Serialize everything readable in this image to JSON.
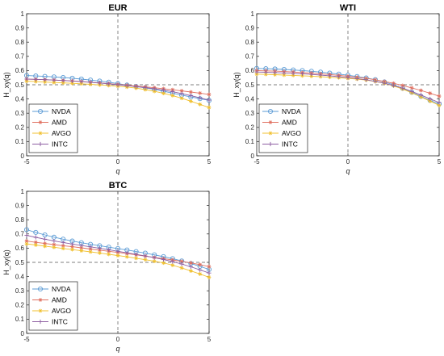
{
  "chart_data": [
    {
      "type": "line",
      "title": "EUR",
      "xlabel": "q",
      "ylabel": "H_xy(q)",
      "xlim": [
        -5,
        5
      ],
      "ylim": [
        0,
        1
      ],
      "xticks": [
        "-5",
        "0",
        "5"
      ],
      "yticks": [
        "0",
        "0.1",
        "0.2",
        "0.3",
        "0.4",
        "0.5",
        "0.6",
        "0.7",
        "0.8",
        "0.9",
        "1"
      ],
      "grid": false,
      "legend_position": "bottom-left",
      "reference_lines": {
        "x": 0,
        "y": 0.5
      },
      "x": [
        -5,
        -4.5,
        -4,
        -3.5,
        -3,
        -2.5,
        -2,
        -1.5,
        -1,
        -0.5,
        0,
        0.5,
        1,
        1.5,
        2,
        2.5,
        3,
        3.5,
        4,
        4.5,
        5
      ],
      "series": [
        {
          "name": "NVDA",
          "values": [
            0.565,
            0.562,
            0.559,
            0.555,
            0.551,
            0.546,
            0.54,
            0.533,
            0.526,
            0.518,
            0.508,
            0.498,
            0.488,
            0.478,
            0.468,
            0.455,
            0.441,
            0.427,
            0.414,
            0.402,
            0.39
          ]
        },
        {
          "name": "AMD",
          "values": [
            0.54,
            0.538,
            0.536,
            0.533,
            0.53,
            0.527,
            0.523,
            0.518,
            0.513,
            0.508,
            0.502,
            0.497,
            0.491,
            0.485,
            0.479,
            0.472,
            0.465,
            0.457,
            0.449,
            0.441,
            0.432
          ]
        },
        {
          "name": "AVGO",
          "values": [
            0.525,
            0.522,
            0.519,
            0.516,
            0.513,
            0.51,
            0.507,
            0.503,
            0.499,
            0.495,
            0.49,
            0.484,
            0.476,
            0.466,
            0.454,
            0.44,
            0.424,
            0.405,
            0.384,
            0.362,
            0.34
          ]
        },
        {
          "name": "INTC",
          "values": [
            0.54,
            0.538,
            0.536,
            0.533,
            0.53,
            0.526,
            0.522,
            0.517,
            0.512,
            0.507,
            0.5,
            0.494,
            0.487,
            0.48,
            0.472,
            0.462,
            0.451,
            0.438,
            0.424,
            0.408,
            0.392
          ]
        }
      ]
    },
    {
      "type": "line",
      "title": "WTI",
      "xlabel": "q",
      "ylabel": "H_xy(q)",
      "xlim": [
        -5,
        5
      ],
      "ylim": [
        0,
        1
      ],
      "xticks": [
        "-5",
        "0",
        "5"
      ],
      "yticks": [
        "0",
        "0.1",
        "0.2",
        "0.3",
        "0.4",
        "0.5",
        "0.6",
        "0.7",
        "0.8",
        "0.9",
        "1"
      ],
      "grid": false,
      "legend_position": "bottom-left",
      "reference_lines": {
        "x": 0,
        "y": 0.5
      },
      "x": [
        -5,
        -4.5,
        -4,
        -3.5,
        -3,
        -2.5,
        -2,
        -1.5,
        -1,
        -0.5,
        0,
        0.5,
        1,
        1.5,
        2,
        2.5,
        3,
        3.5,
        4,
        4.5,
        5
      ],
      "series": [
        {
          "name": "NVDA",
          "values": [
            0.615,
            0.613,
            0.611,
            0.608,
            0.604,
            0.6,
            0.595,
            0.589,
            0.582,
            0.575,
            0.567,
            0.558,
            0.548,
            0.536,
            0.52,
            0.5,
            0.475,
            0.447,
            0.418,
            0.39,
            0.365
          ]
        },
        {
          "name": "AMD",
          "values": [
            0.6,
            0.598,
            0.596,
            0.593,
            0.59,
            0.586,
            0.582,
            0.577,
            0.572,
            0.566,
            0.56,
            0.553,
            0.545,
            0.535,
            0.523,
            0.51,
            0.495,
            0.478,
            0.46,
            0.44,
            0.42
          ]
        },
        {
          "name": "AVGO",
          "values": [
            0.575,
            0.573,
            0.571,
            0.568,
            0.566,
            0.563,
            0.56,
            0.557,
            0.553,
            0.549,
            0.545,
            0.54,
            0.533,
            0.523,
            0.51,
            0.492,
            0.47,
            0.443,
            0.414,
            0.385,
            0.355
          ]
        },
        {
          "name": "INTC",
          "values": [
            0.59,
            0.588,
            0.586,
            0.583,
            0.58,
            0.577,
            0.573,
            0.568,
            0.563,
            0.557,
            0.55,
            0.543,
            0.535,
            0.524,
            0.511,
            0.495,
            0.476,
            0.453,
            0.428,
            0.401,
            0.375
          ]
        }
      ]
    },
    {
      "type": "line",
      "title": "BTC",
      "xlabel": "q",
      "ylabel": "H_xy(q)",
      "xlim": [
        -5,
        5
      ],
      "ylim": [
        0,
        1
      ],
      "xticks": [
        "-5",
        "0",
        "5"
      ],
      "yticks": [
        "0",
        "0.1",
        "0.2",
        "0.3",
        "0.4",
        "0.5",
        "0.6",
        "0.7",
        "0.8",
        "0.9",
        "1"
      ],
      "grid": false,
      "legend_position": "bottom-left",
      "reference_lines": {
        "x": 0,
        "y": 0.5
      },
      "x": [
        -5,
        -4.5,
        -4,
        -3.5,
        -3,
        -2.5,
        -2,
        -1.5,
        -1,
        -0.5,
        0,
        0.5,
        1,
        1.5,
        2,
        2.5,
        3,
        3.5,
        4,
        4.5,
        5
      ],
      "series": [
        {
          "name": "NVDA",
          "values": [
            0.73,
            0.711,
            0.693,
            0.677,
            0.663,
            0.65,
            0.638,
            0.627,
            0.617,
            0.607,
            0.597,
            0.587,
            0.576,
            0.565,
            0.553,
            0.54,
            0.526,
            0.51,
            0.492,
            0.472,
            0.45
          ]
        },
        {
          "name": "AMD",
          "values": [
            0.65,
            0.641,
            0.633,
            0.625,
            0.617,
            0.61,
            0.602,
            0.594,
            0.586,
            0.578,
            0.57,
            0.562,
            0.553,
            0.544,
            0.535,
            0.526,
            0.517,
            0.507,
            0.496,
            0.484,
            0.47
          ]
        },
        {
          "name": "AVGO",
          "values": [
            0.63,
            0.622,
            0.614,
            0.606,
            0.598,
            0.59,
            0.582,
            0.574,
            0.566,
            0.557,
            0.548,
            0.539,
            0.529,
            0.519,
            0.508,
            0.496,
            0.48,
            0.461,
            0.44,
            0.418,
            0.395
          ]
        },
        {
          "name": "INTC",
          "values": [
            0.69,
            0.676,
            0.663,
            0.651,
            0.64,
            0.629,
            0.619,
            0.609,
            0.599,
            0.589,
            0.578,
            0.567,
            0.556,
            0.545,
            0.533,
            0.52,
            0.505,
            0.488,
            0.469,
            0.447,
            0.425
          ]
        }
      ]
    }
  ],
  "styles": {
    "NVDA": {
      "color": "#5b9bd5",
      "marker": "circle"
    },
    "AMD": {
      "color": "#e07060",
      "marker": "star"
    },
    "AVGO": {
      "color": "#f0c030",
      "marker": "star"
    },
    "INTC": {
      "color": "#8e5fa2",
      "marker": "plus"
    }
  }
}
